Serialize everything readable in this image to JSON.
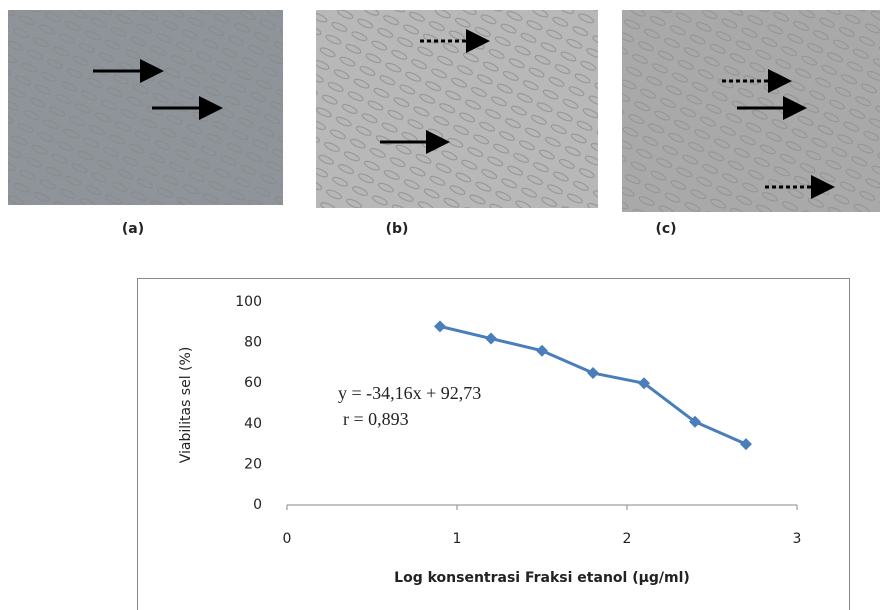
{
  "panels": [
    {
      "label": "(a)"
    },
    {
      "label": "(b)"
    },
    {
      "label": "(c)"
    }
  ],
  "chart_data": {
    "type": "line",
    "xlabel": "Log konsentrasi Fraksi etanol (µg/ml)",
    "ylabel": "Viabilitas sel (%)",
    "annotations": [
      "y = -34,16x + 92,73",
      "r = 0,893"
    ],
    "x": [
      0.9,
      1.2,
      1.5,
      1.8,
      2.1,
      2.4,
      2.7
    ],
    "values": [
      88,
      82,
      76,
      65,
      60,
      41,
      30
    ],
    "color": "#4a7ebb",
    "xlim": [
      0,
      3
    ],
    "xticks": [
      0,
      1,
      2,
      3
    ],
    "ylim": [
      0,
      100
    ],
    "yticks": [
      0,
      20,
      40,
      60,
      80,
      100
    ],
    "grid": false
  }
}
